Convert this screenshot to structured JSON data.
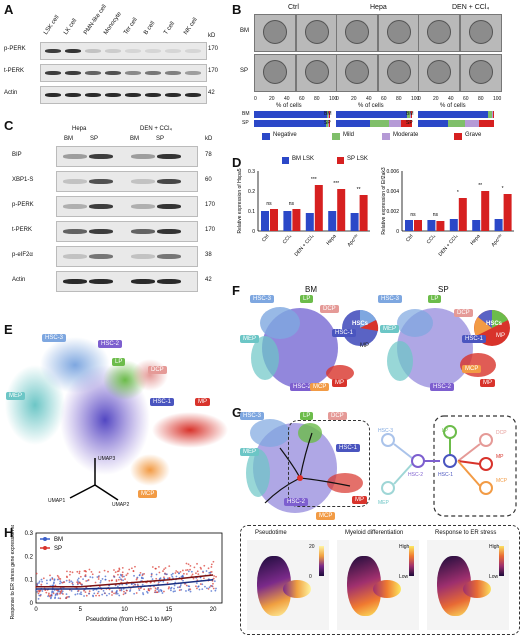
{
  "panels": {
    "A": "A",
    "B": "B",
    "C": "C",
    "D": "D",
    "E": "E",
    "F": "F",
    "G": "G",
    "H": "H"
  },
  "A": {
    "lanes": [
      "LSK cell",
      "LK cell",
      "PMN-like cell",
      "Monocyte",
      "Ter cell",
      "B cell",
      "T cell",
      "NK cell"
    ],
    "rows": [
      {
        "label": "p-PERK",
        "kd": "170"
      },
      {
        "label": "t-PERK",
        "kd": "170"
      },
      {
        "label": "Actin",
        "kd": "42"
      }
    ],
    "kd_header": "kD"
  },
  "B": {
    "groups": [
      "Ctrl",
      "Hepa",
      "DEN + CCl₄"
    ],
    "rows": [
      "BM",
      "SP"
    ],
    "axis_label": "% of cells",
    "ticks": [
      "0",
      "20",
      "40",
      "60",
      "80",
      "100"
    ],
    "legend": [
      {
        "name": "Negative",
        "color": "#2b48c8"
      },
      {
        "name": "Mild",
        "color": "#7fbf6a"
      },
      {
        "name": "Moderate",
        "color": "#b59ad6"
      },
      {
        "name": "Grave",
        "color": "#d62020"
      }
    ],
    "bars": [
      {
        "group": "Ctrl",
        "row": "BM",
        "values": [
          96,
          2,
          1,
          1
        ]
      },
      {
        "group": "Ctrl",
        "row": "SP",
        "values": [
          95,
          3,
          1,
          1
        ]
      },
      {
        "group": "Hepa",
        "row": "BM",
        "values": [
          93,
          4,
          2,
          1
        ]
      },
      {
        "group": "Hepa",
        "row": "SP",
        "values": [
          45,
          25,
          15,
          15
        ]
      },
      {
        "group": "DEN + CCl₄",
        "row": "BM",
        "values": [
          92,
          5,
          2,
          1
        ]
      },
      {
        "group": "DEN + CCl₄",
        "row": "SP",
        "values": [
          40,
          22,
          18,
          20
        ]
      }
    ]
  },
  "C": {
    "groups": [
      "Hepa",
      "DEN + CCl₄"
    ],
    "lanes": [
      "BM",
      "SP",
      "BM",
      "SP"
    ],
    "rows": [
      {
        "label": "BIP",
        "kd": "78"
      },
      {
        "label": "XBP1-S",
        "kd": "60"
      },
      {
        "label": "p-PERK",
        "kd": "170"
      },
      {
        "label": "t-PERK",
        "kd": "170"
      },
      {
        "label": "p-eIF2α",
        "kd": "38"
      },
      {
        "label": "Actin",
        "kd": "42"
      }
    ],
    "kd_header": "kD"
  },
  "D": {
    "legend": [
      {
        "name": "BM LSK",
        "color": "#2b48c8"
      },
      {
        "name": "SP LSK",
        "color": "#d62020"
      }
    ],
    "categories": [
      "Ctrl",
      "CCl₄",
      "DEN + CCl₄",
      "Hepa",
      "Apcᵐᴵⁿ"
    ],
    "charts": [
      {
        "ylabel": "Relative expression of Hspa5",
        "ylim": [
          0,
          0.3
        ],
        "ticks": [
          "0",
          "0.1",
          "0.2",
          "0.3"
        ],
        "bm": [
          0.1,
          0.1,
          0.09,
          0.1,
          0.09
        ],
        "sp": [
          0.11,
          0.11,
          0.23,
          0.21,
          0.18
        ],
        "sig": [
          "ns",
          "ns",
          "***",
          "***",
          "**"
        ]
      },
      {
        "ylabel": "Relative expression of Eif2ak3",
        "ylim": [
          0,
          0.006
        ],
        "ticks": [
          "0",
          "0.002",
          "0.004",
          "0.006"
        ],
        "bm": [
          0.0011,
          0.0011,
          0.0012,
          0.0011,
          0.0012
        ],
        "sp": [
          0.0011,
          0.001,
          0.0033,
          0.004,
          0.0037
        ],
        "sig": [
          "ns",
          "ns",
          "*",
          "**",
          "*"
        ]
      }
    ]
  },
  "E": {
    "clusters": [
      {
        "name": "HSC-3",
        "color": "#7ea7e0"
      },
      {
        "name": "HSC-2",
        "color": "#7d5fcf"
      },
      {
        "name": "LP",
        "color": "#6cbc4a"
      },
      {
        "name": "DCP",
        "color": "#e59a97"
      },
      {
        "name": "MEP",
        "color": "#6cc6c6"
      },
      {
        "name": "HSC-1",
        "color": "#4a55bf"
      },
      {
        "name": "MP",
        "color": "#d8332b"
      },
      {
        "name": "MCP",
        "color": "#f29b45"
      }
    ],
    "axes": [
      "UMAP1",
      "UMAP2",
      "UMAP3"
    ]
  },
  "F": {
    "titles": [
      "BM",
      "SP"
    ],
    "pie_labels": {
      "hscs": "HSCs",
      "mp": "MP"
    }
  },
  "G": {
    "tree_nodes": [
      "HSC-3",
      "HSC-2",
      "HSC-1",
      "LP",
      "MEP",
      "DCP",
      "MP",
      "MCP"
    ],
    "subpanels": [
      {
        "title": "Pseudotime",
        "low": "0",
        "high": "20"
      },
      {
        "title": "Myeloid differentiation",
        "low": "Low",
        "high": "High"
      },
      {
        "title": "Response to ER stress",
        "low": "Low",
        "high": "High"
      }
    ]
  },
  "H": {
    "legend": [
      {
        "name": "BM",
        "color": "#3b5fc9"
      },
      {
        "name": "SP",
        "color": "#d8332b"
      }
    ],
    "xlabel": "Pseudotime (from HSC-1 to MP)",
    "ylabel": "Response to ER stress gene expression score",
    "xticks": [
      "0",
      "5",
      "10",
      "15",
      "20"
    ],
    "yticks": [
      "0",
      "0.1",
      "0.2",
      "0.3"
    ]
  },
  "chart_data": [
    {
      "type": "bar",
      "title": "",
      "ylabel": "Relative expression of Hspa5",
      "categories": [
        "Ctrl",
        "CCl₄",
        "DEN + CCl₄",
        "Hepa",
        "Apcᵐᴵⁿ"
      ],
      "ylim": [
        0,
        0.3
      ],
      "series": [
        {
          "name": "BM LSK",
          "values": [
            0.1,
            0.1,
            0.09,
            0.1,
            0.09
          ]
        },
        {
          "name": "SP LSK",
          "values": [
            0.11,
            0.11,
            0.23,
            0.21,
            0.18
          ]
        }
      ]
    },
    {
      "type": "bar",
      "title": "",
      "ylabel": "Relative expression of Eif2ak3",
      "categories": [
        "Ctrl",
        "CCl₄",
        "DEN + CCl₄",
        "Hepa",
        "Apcᵐᴵⁿ"
      ],
      "ylim": [
        0,
        0.006
      ],
      "series": [
        {
          "name": "BM LSK",
          "values": [
            0.0011,
            0.0011,
            0.0012,
            0.0011,
            0.0012
          ]
        },
        {
          "name": "SP LSK",
          "values": [
            0.0011,
            0.001,
            0.0033,
            0.004,
            0.0037
          ]
        }
      ]
    },
    {
      "type": "scatter",
      "xlabel": "Pseudotime (from HSC-1 to MP)",
      "ylabel": "Response to ER stress gene expression score",
      "xlim": [
        0,
        21
      ],
      "ylim": [
        0,
        0.3
      ],
      "series": [
        {
          "name": "BM",
          "trend": [
            [
              0,
              0.06
            ],
            [
              5,
              0.06
            ],
            [
              10,
              0.065
            ],
            [
              15,
              0.08
            ],
            [
              20,
              0.1
            ]
          ]
        },
        {
          "name": "SP",
          "trend": [
            [
              0,
              0.07
            ],
            [
              5,
              0.07
            ],
            [
              10,
              0.085
            ],
            [
              15,
              0.1
            ],
            [
              20,
              0.12
            ]
          ]
        }
      ]
    }
  ]
}
